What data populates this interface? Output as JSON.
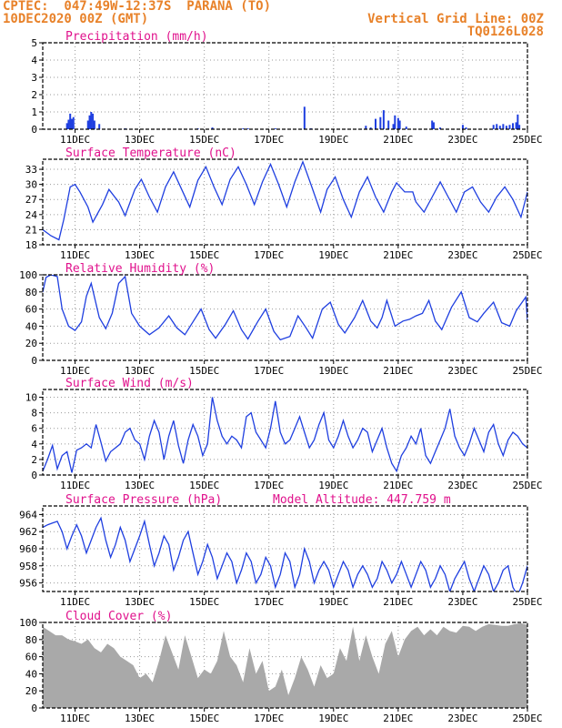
{
  "header": {
    "line1": "CPTEC:  047:49W-12:37S  PARANA (TO)",
    "line2": "10DEC2020 00Z (GMT)",
    "grid_note": "Vertical Grid Line: 00Z",
    "code": "TQ0126L028"
  },
  "colors": {
    "header": "#e8822a",
    "panel_title": "#e0118c",
    "series": "#1f3fe0",
    "cloud": "#a9a9a9",
    "grid": "#9a9a9a"
  },
  "x_axis": {
    "range_days": [
      10.0,
      25.0
    ],
    "tick_days": [
      11,
      13,
      15,
      17,
      19,
      21,
      23,
      25
    ],
    "tick_labels": [
      "11DEC",
      "13DEC",
      "15DEC",
      "17DEC",
      "19DEC",
      "21DEC",
      "23DEC",
      "25DEC"
    ]
  },
  "chart_data": [
    {
      "id": "precipitation",
      "type": "bar",
      "title": "Precipitation (mm/h)",
      "ylim": [
        0,
        5
      ],
      "yticks": [
        0,
        1,
        2,
        3,
        4,
        5
      ],
      "x": [
        10.75,
        10.8,
        10.85,
        10.9,
        10.95,
        11.4,
        11.45,
        11.5,
        11.55,
        11.6,
        11.75,
        12.55,
        14.8,
        15.25,
        16.2,
        16.35,
        17.2,
        18.1,
        18.3,
        20.0,
        20.15,
        20.3,
        20.45,
        20.55,
        20.7,
        20.85,
        20.9,
        21.0,
        21.05,
        21.25,
        22.05,
        22.1,
        22.3,
        23.0,
        23.1,
        23.95,
        24.05,
        24.15,
        24.25,
        24.35,
        24.45,
        24.55,
        24.65,
        24.7,
        24.75
      ],
      "values": [
        0.35,
        0.55,
        0.9,
        0.6,
        0.7,
        0.5,
        0.8,
        1.0,
        0.9,
        0.5,
        0.3,
        0.05,
        0.05,
        0.1,
        0.05,
        0.05,
        0.05,
        1.3,
        0.05,
        0.2,
        0.1,
        0.6,
        0.7,
        1.1,
        0.5,
        0.3,
        0.8,
        0.65,
        0.5,
        0.15,
        0.5,
        0.4,
        0.1,
        0.25,
        0.1,
        0.25,
        0.3,
        0.2,
        0.3,
        0.2,
        0.25,
        0.35,
        0.4,
        0.85,
        0.25
      ]
    },
    {
      "id": "temperature",
      "type": "line",
      "title": "Surface Temperature (nC)",
      "ylim": [
        18,
        35
      ],
      "yticks": [
        18,
        21,
        24,
        27,
        30,
        33
      ],
      "x": [
        10.0,
        10.25,
        10.5,
        10.65,
        10.85,
        11.0,
        11.15,
        11.4,
        11.55,
        11.85,
        12.05,
        12.35,
        12.55,
        12.85,
        13.05,
        13.3,
        13.55,
        13.8,
        14.05,
        14.3,
        14.55,
        14.8,
        15.05,
        15.3,
        15.55,
        15.8,
        16.05,
        16.3,
        16.55,
        16.8,
        17.05,
        17.3,
        17.55,
        17.8,
        18.05,
        18.3,
        18.6,
        18.8,
        19.05,
        19.3,
        19.55,
        19.8,
        20.05,
        20.3,
        20.55,
        20.8,
        20.95,
        21.2,
        21.45,
        21.55,
        21.8,
        22.05,
        22.3,
        22.55,
        22.8,
        23.05,
        23.3,
        23.55,
        23.8,
        24.05,
        24.3,
        24.55,
        24.8,
        25.0
      ],
      "values": [
        21.0,
        19.8,
        19.0,
        23.0,
        29.5,
        30.0,
        28.5,
        25.5,
        22.5,
        26.0,
        29.0,
        26.5,
        23.8,
        29.0,
        31.0,
        27.5,
        24.5,
        29.5,
        32.5,
        29.0,
        25.5,
        30.8,
        33.5,
        29.5,
        26.0,
        31.0,
        33.5,
        30.0,
        26.0,
        30.5,
        34.0,
        30.0,
        25.5,
        30.5,
        34.5,
        30.0,
        24.5,
        29.0,
        31.5,
        27.0,
        23.5,
        28.5,
        31.5,
        27.5,
        24.5,
        28.5,
        30.3,
        28.5,
        28.5,
        26.5,
        24.5,
        27.5,
        30.5,
        27.5,
        24.5,
        28.5,
        29.5,
        26.5,
        24.5,
        27.5,
        29.5,
        27.0,
        23.5,
        28.5
      ]
    },
    {
      "id": "humidity",
      "type": "line",
      "title": "Relative Humidity (%)",
      "ylim": [
        0,
        100
      ],
      "yticks": [
        0,
        20,
        40,
        60,
        80,
        100
      ],
      "x": [
        10.0,
        10.1,
        10.25,
        10.45,
        10.6,
        10.8,
        11.0,
        11.2,
        11.35,
        11.5,
        11.75,
        11.95,
        12.15,
        12.35,
        12.55,
        12.75,
        13.0,
        13.3,
        13.6,
        13.9,
        14.15,
        14.4,
        14.65,
        14.9,
        15.15,
        15.35,
        15.65,
        15.9,
        16.15,
        16.35,
        16.65,
        16.9,
        17.15,
        17.35,
        17.65,
        17.9,
        18.15,
        18.35,
        18.65,
        18.9,
        19.15,
        19.35,
        19.65,
        19.9,
        20.15,
        20.35,
        20.5,
        20.65,
        20.9,
        21.15,
        21.35,
        21.55,
        21.75,
        21.95,
        22.15,
        22.35,
        22.65,
        22.95,
        23.2,
        23.45,
        23.65,
        23.95,
        24.2,
        24.45,
        24.65,
        24.95,
        25.0
      ],
      "values": [
        80,
        97,
        100,
        98,
        60,
        40,
        35,
        45,
        75,
        90,
        50,
        37,
        55,
        90,
        98,
        55,
        40,
        30,
        38,
        52,
        38,
        30,
        45,
        60,
        36,
        26,
        42,
        58,
        36,
        25,
        45,
        60,
        34,
        24,
        28,
        52,
        38,
        26,
        60,
        68,
        42,
        32,
        50,
        70,
        46,
        38,
        50,
        70,
        40,
        46,
        48,
        52,
        55,
        70,
        46,
        36,
        62,
        80,
        50,
        45,
        55,
        68,
        44,
        40,
        58,
        74,
        46
      ]
    },
    {
      "id": "wind",
      "type": "line",
      "title": "Surface Wind (m/s)",
      "ylim": [
        0,
        11
      ],
      "yticks": [
        0,
        2,
        4,
        6,
        8,
        10
      ],
      "x": [
        10.0,
        10.15,
        10.3,
        10.45,
        10.6,
        10.75,
        10.9,
        11.05,
        11.2,
        11.35,
        11.5,
        11.65,
        11.8,
        11.95,
        12.1,
        12.25,
        12.4,
        12.55,
        12.7,
        12.85,
        13.0,
        13.15,
        13.3,
        13.45,
        13.6,
        13.75,
        13.9,
        14.05,
        14.2,
        14.35,
        14.5,
        14.65,
        14.8,
        14.95,
        15.1,
        15.25,
        15.4,
        15.55,
        15.7,
        15.85,
        16.0,
        16.15,
        16.3,
        16.45,
        16.6,
        16.75,
        16.9,
        17.05,
        17.2,
        17.35,
        17.5,
        17.65,
        17.8,
        17.95,
        18.1,
        18.25,
        18.4,
        18.55,
        18.7,
        18.85,
        19.0,
        19.15,
        19.3,
        19.45,
        19.6,
        19.75,
        19.9,
        20.05,
        20.2,
        20.35,
        20.5,
        20.65,
        20.8,
        20.95,
        21.1,
        21.25,
        21.4,
        21.55,
        21.7,
        21.85,
        22.0,
        22.15,
        22.3,
        22.45,
        22.6,
        22.75,
        22.9,
        23.05,
        23.2,
        23.35,
        23.5,
        23.65,
        23.8,
        23.95,
        24.1,
        24.25,
        24.4,
        24.55,
        24.7,
        24.85,
        25.0
      ],
      "values": [
        0.5,
        2.0,
        3.8,
        0.8,
        2.5,
        3.0,
        0.3,
        3.2,
        3.5,
        4.0,
        3.5,
        6.5,
        4.2,
        1.8,
        3.0,
        3.5,
        4.0,
        5.5,
        6.0,
        4.5,
        4.0,
        2.0,
        5.0,
        7.0,
        5.5,
        2.0,
        5.0,
        7.0,
        3.8,
        1.5,
        4.5,
        6.5,
        5.0,
        2.5,
        4.0,
        10.0,
        7.0,
        5.0,
        4.0,
        5.0,
        4.5,
        3.5,
        7.5,
        8.0,
        5.5,
        4.5,
        3.5,
        6.0,
        9.5,
        5.5,
        4.0,
        4.5,
        6.0,
        7.5,
        5.5,
        3.5,
        4.5,
        6.5,
        8.0,
        4.5,
        3.5,
        5.0,
        7.0,
        5.0,
        3.5,
        4.5,
        6.0,
        5.5,
        3.0,
        4.5,
        6.0,
        3.5,
        1.5,
        0.5,
        2.5,
        3.5,
        5.0,
        4.0,
        6.0,
        2.5,
        1.5,
        3.0,
        4.5,
        6.0,
        8.5,
        5.0,
        3.5,
        2.5,
        4.0,
        6.0,
        4.5,
        3.0,
        5.5,
        6.5,
        4.0,
        2.5,
        4.5,
        5.5,
        5.0,
        4.0,
        3.5
      ]
    },
    {
      "id": "pressure",
      "type": "line",
      "title": "Surface Pressure (hPa)",
      "annotation": "Model Altitude: 447.759 m",
      "ylim": [
        955,
        965
      ],
      "yticks": [
        956,
        958,
        960,
        962,
        964
      ],
      "x": [
        10.0,
        10.15,
        10.3,
        10.45,
        10.6,
        10.75,
        10.9,
        11.05,
        11.2,
        11.35,
        11.5,
        11.65,
        11.8,
        11.95,
        12.1,
        12.25,
        12.4,
        12.55,
        12.7,
        12.85,
        13.0,
        13.15,
        13.3,
        13.45,
        13.6,
        13.75,
        13.9,
        14.05,
        14.2,
        14.35,
        14.5,
        14.65,
        14.8,
        14.95,
        15.1,
        15.25,
        15.4,
        15.55,
        15.7,
        15.85,
        16.0,
        16.15,
        16.3,
        16.45,
        16.6,
        16.75,
        16.9,
        17.05,
        17.2,
        17.35,
        17.5,
        17.65,
        17.8,
        17.95,
        18.1,
        18.25,
        18.4,
        18.55,
        18.7,
        18.85,
        19.0,
        19.15,
        19.3,
        19.45,
        19.6,
        19.75,
        19.9,
        20.05,
        20.2,
        20.35,
        20.5,
        20.65,
        20.8,
        20.95,
        21.1,
        21.25,
        21.4,
        21.55,
        21.7,
        21.85,
        22.0,
        22.15,
        22.3,
        22.45,
        22.6,
        22.75,
        22.9,
        23.05,
        23.2,
        23.35,
        23.5,
        23.65,
        23.8,
        23.95,
        24.1,
        24.25,
        24.4,
        24.55,
        24.7,
        24.85,
        25.0
      ],
      "values": [
        962.5,
        962.8,
        963.0,
        963.2,
        962.0,
        960.0,
        961.5,
        962.8,
        961.5,
        959.5,
        961.0,
        962.5,
        963.6,
        961.0,
        959.0,
        960.5,
        962.5,
        961.0,
        958.5,
        960.0,
        961.5,
        963.2,
        960.5,
        958.0,
        959.5,
        961.5,
        960.5,
        957.5,
        959.0,
        961.0,
        962.0,
        959.5,
        957.0,
        958.5,
        960.5,
        959.0,
        956.5,
        958.0,
        959.5,
        958.5,
        956.0,
        957.5,
        959.5,
        958.5,
        956.0,
        957.0,
        959.0,
        958.0,
        955.5,
        957.0,
        959.5,
        958.5,
        955.5,
        957.0,
        960.0,
        958.5,
        956.0,
        957.5,
        958.5,
        957.5,
        955.5,
        957.0,
        958.5,
        957.5,
        955.5,
        957.0,
        958.0,
        957.0,
        955.5,
        956.5,
        958.5,
        957.5,
        956.0,
        957.0,
        958.5,
        957.0,
        955.5,
        957.0,
        958.5,
        957.5,
        955.5,
        956.5,
        958.0,
        957.0,
        955.0,
        956.5,
        957.5,
        958.5,
        956.5,
        955.0,
        956.5,
        958.0,
        957.0,
        955.0,
        956.0,
        957.5,
        958.0,
        955.5,
        954.5,
        956.0,
        958.0
      ]
    },
    {
      "id": "cloud",
      "type": "area",
      "title": "Cloud Cover (%)",
      "ylim": [
        0,
        100
      ],
      "yticks": [
        0,
        20,
        40,
        60,
        80,
        100
      ],
      "x": [
        10.0,
        10.2,
        10.4,
        10.6,
        10.8,
        11.0,
        11.2,
        11.4,
        11.6,
        11.8,
        12.0,
        12.2,
        12.4,
        12.6,
        12.8,
        13.0,
        13.2,
        13.4,
        13.6,
        13.8,
        14.0,
        14.2,
        14.4,
        14.6,
        14.8,
        15.0,
        15.2,
        15.4,
        15.6,
        15.8,
        16.0,
        16.2,
        16.4,
        16.6,
        16.8,
        17.0,
        17.2,
        17.4,
        17.6,
        17.8,
        18.0,
        18.2,
        18.4,
        18.6,
        18.8,
        19.0,
        19.2,
        19.4,
        19.6,
        19.8,
        20.0,
        20.2,
        20.4,
        20.6,
        20.8,
        21.0,
        21.2,
        21.4,
        21.6,
        21.8,
        22.0,
        22.2,
        22.4,
        22.6,
        22.8,
        23.0,
        23.2,
        23.4,
        23.6,
        23.8,
        24.0,
        24.2,
        24.4,
        24.6,
        24.8,
        25.0
      ],
      "values": [
        95,
        90,
        85,
        85,
        80,
        78,
        75,
        80,
        70,
        65,
        75,
        70,
        60,
        55,
        50,
        35,
        40,
        30,
        55,
        85,
        65,
        45,
        85,
        60,
        35,
        45,
        40,
        55,
        90,
        60,
        50,
        30,
        70,
        40,
        55,
        20,
        25,
        45,
        15,
        35,
        60,
        45,
        25,
        50,
        35,
        40,
        70,
        55,
        95,
        55,
        85,
        60,
        40,
        75,
        90,
        60,
        80,
        90,
        95,
        85,
        92,
        85,
        95,
        90,
        88,
        96,
        95,
        90,
        95,
        98,
        97,
        96,
        96,
        98,
        99,
        97
      ]
    }
  ]
}
